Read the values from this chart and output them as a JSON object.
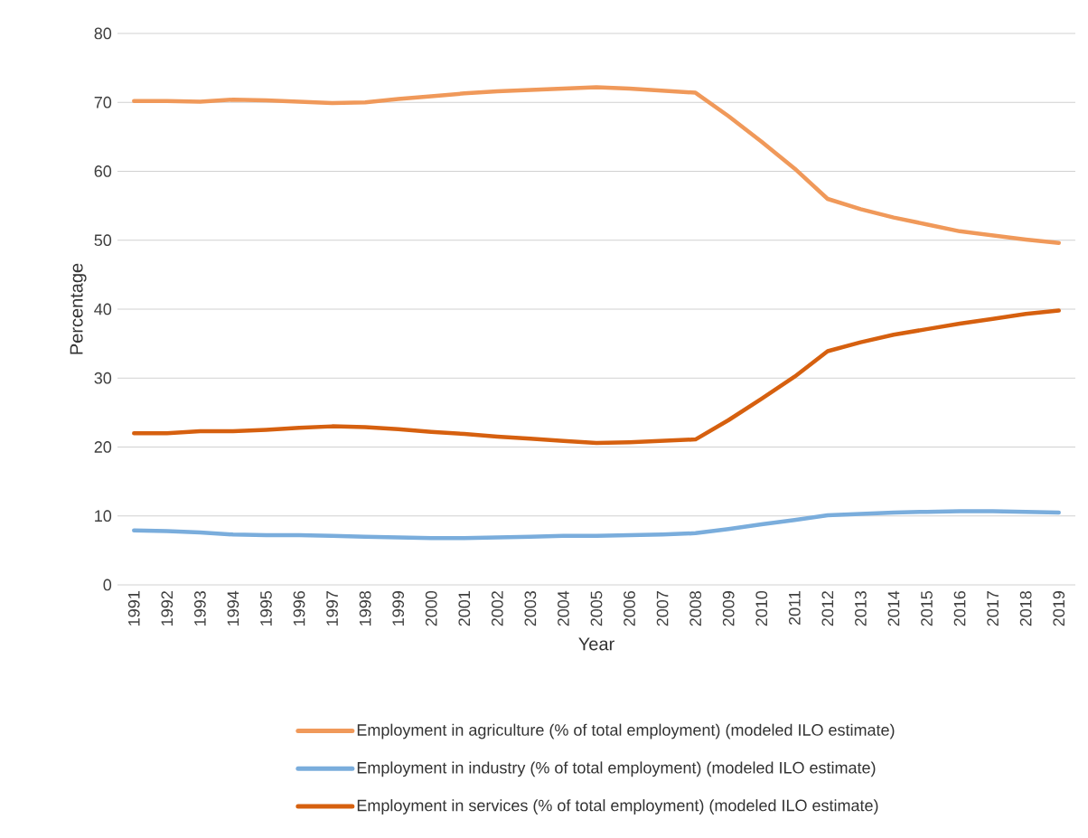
{
  "chart_data": {
    "type": "line",
    "xlabel": "Year",
    "ylabel": "Percentage",
    "categories": [
      "1991",
      "1992",
      "1993",
      "1994",
      "1995",
      "1996",
      "1997",
      "1998",
      "1999",
      "2000",
      "2001",
      "2002",
      "2003",
      "2004",
      "2005",
      "2006",
      "2007",
      "2008",
      "2009",
      "2010",
      "2011",
      "2012",
      "2013",
      "2014",
      "2015",
      "2016",
      "2017",
      "2018",
      "2019"
    ],
    "series": [
      {
        "name": "Employment in agriculture (% of total employment) (modeled ILO estimate)",
        "color": "#f0995a",
        "values": [
          70.2,
          70.2,
          70.1,
          70.4,
          70.3,
          70.1,
          69.9,
          70.0,
          70.5,
          70.9,
          71.3,
          71.6,
          71.8,
          72.0,
          72.2,
          72.0,
          71.7,
          71.4,
          68.0,
          64.3,
          60.4,
          56.0,
          54.5,
          53.3,
          52.3,
          51.3,
          50.7,
          50.1,
          49.6
        ]
      },
      {
        "name": "Employment in industry (% of total employment) (modeled ILO estimate)",
        "color": "#7aaddc",
        "values": [
          7.9,
          7.8,
          7.6,
          7.3,
          7.2,
          7.2,
          7.1,
          7.0,
          6.9,
          6.8,
          6.8,
          6.9,
          7.0,
          7.1,
          7.1,
          7.2,
          7.3,
          7.5,
          8.1,
          8.8,
          9.4,
          10.1,
          10.3,
          10.5,
          10.6,
          10.7,
          10.7,
          10.6,
          10.5
        ]
      },
      {
        "name": "Employment in services (% of total employment) (modeled ILO estimate)",
        "color": "#d6600f",
        "values": [
          22.0,
          22.0,
          22.3,
          22.3,
          22.5,
          22.8,
          23.0,
          22.9,
          22.6,
          22.2,
          21.9,
          21.5,
          21.2,
          20.9,
          20.6,
          20.7,
          20.9,
          21.1,
          23.9,
          27.0,
          30.2,
          33.9,
          35.2,
          36.3,
          37.1,
          37.9,
          38.6,
          39.3,
          39.8
        ]
      }
    ],
    "ylim": [
      0,
      80
    ],
    "yticks": [
      0,
      10,
      20,
      30,
      40,
      50,
      60,
      70,
      80
    ],
    "grid": "y",
    "legend": "bottom",
    "marker": "none",
    "line_style": "solid"
  }
}
